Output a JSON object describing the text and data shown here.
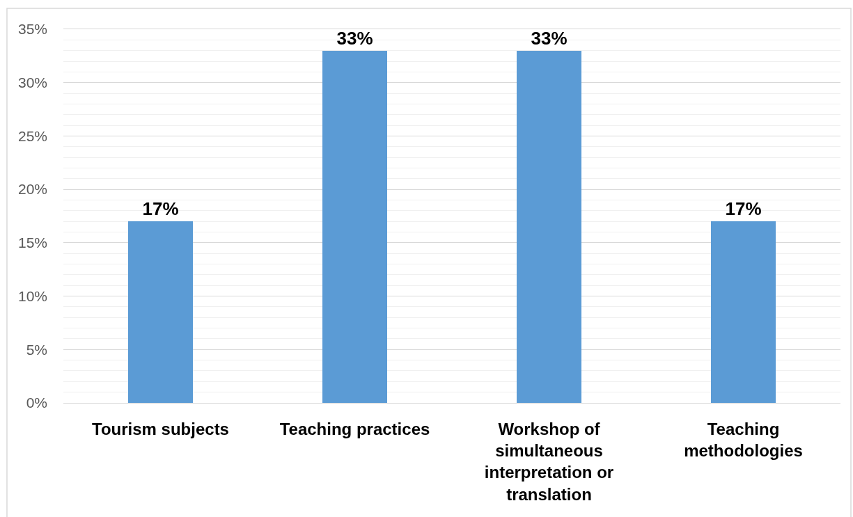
{
  "chart_data": {
    "type": "bar",
    "categories": [
      "Tourism subjects",
      "Teaching practices",
      "Workshop of simultaneous interpretation or translation",
      "Teaching methodologies"
    ],
    "values": [
      17,
      33,
      33,
      17
    ],
    "color": "#5b9bd5",
    "value_labels": [
      "17%",
      "33%",
      "33%",
      "17%"
    ],
    "ylim": [
      0,
      35
    ],
    "yticks": [
      {
        "value": 0,
        "label": "0%"
      },
      {
        "value": 1,
        "label": null
      },
      {
        "value": 2,
        "label": null
      },
      {
        "value": 3,
        "label": null
      },
      {
        "value": 4,
        "label": null
      },
      {
        "value": 5,
        "label": "5%"
      },
      {
        "value": 6,
        "label": null
      },
      {
        "value": 7,
        "label": null
      },
      {
        "value": 8,
        "label": null
      },
      {
        "value": 9,
        "label": null
      },
      {
        "value": 10,
        "label": "10%"
      },
      {
        "value": 11,
        "label": null
      },
      {
        "value": 12,
        "label": null
      },
      {
        "value": 13,
        "label": null
      },
      {
        "value": 14,
        "label": null
      },
      {
        "value": 15,
        "label": "15%"
      },
      {
        "value": 16,
        "label": null
      },
      {
        "value": 17,
        "label": null
      },
      {
        "value": 18,
        "label": null
      },
      {
        "value": 19,
        "label": null
      },
      {
        "value": 20,
        "label": "20%"
      },
      {
        "value": 21,
        "label": null
      },
      {
        "value": 22,
        "label": null
      },
      {
        "value": 23,
        "label": null
      },
      {
        "value": 24,
        "label": null
      },
      {
        "value": 25,
        "label": "25%"
      },
      {
        "value": 26,
        "label": null
      },
      {
        "value": 27,
        "label": null
      },
      {
        "value": 28,
        "label": null
      },
      {
        "value": 29,
        "label": null
      },
      {
        "value": 30,
        "label": "30%"
      },
      {
        "value": 31,
        "label": null
      },
      {
        "value": 32,
        "label": null
      },
      {
        "value": 33,
        "label": null
      },
      {
        "value": 34,
        "label": null
      },
      {
        "value": 35,
        "label": "35%"
      }
    ],
    "grid": true
  }
}
